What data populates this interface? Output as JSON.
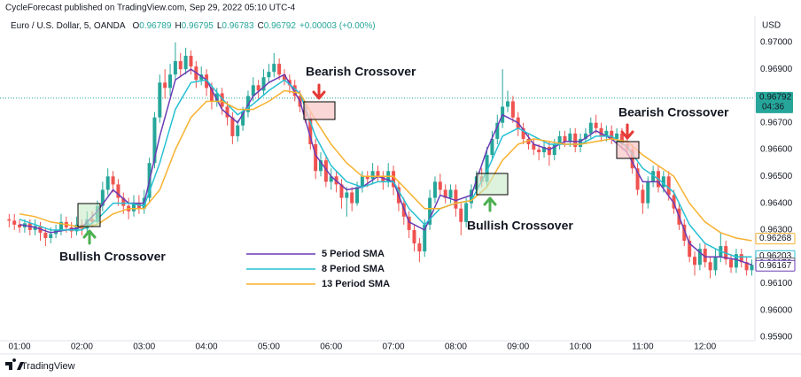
{
  "chart_data": {
    "type": "candlestick",
    "title": "CycleForecast published on TradingView.com, Sep 29, 2022 05:10 UTC-4",
    "symbol": "Euro / U.S. Dollar, 5, OANDA",
    "ohlc": [
      {
        "key": "O",
        "value": 0.96789
      },
      {
        "key": "H",
        "value": 0.96795
      },
      {
        "key": "L",
        "value": 0.96783
      },
      {
        "key": "C",
        "value": 0.96792
      }
    ],
    "change": "+0.00003 (+0.00%)",
    "currency": "USD",
    "brand": "TradingView",
    "up_color": "#26a69a",
    "down_color": "#ef5350",
    "x": [
      "00:50",
      "00:55",
      "01:00",
      "01:05",
      "01:10",
      "01:15",
      "01:20",
      "01:25",
      "01:30",
      "01:35",
      "01:40",
      "01:45",
      "01:50",
      "01:55",
      "02:00",
      "02:05",
      "02:10",
      "02:15",
      "02:20",
      "02:25",
      "02:30",
      "02:35",
      "02:40",
      "02:45",
      "02:50",
      "02:55",
      "03:00",
      "03:05",
      "03:10",
      "03:15",
      "03:20",
      "03:25",
      "03:30",
      "03:35",
      "03:40",
      "03:45",
      "03:50",
      "03:55",
      "04:00",
      "04:05",
      "04:10",
      "04:15",
      "04:20",
      "04:25",
      "04:30",
      "04:35",
      "04:40",
      "04:45",
      "04:50",
      "04:55",
      "05:00",
      "05:05",
      "05:10",
      "05:15",
      "05:20",
      "05:25",
      "05:30",
      "05:35",
      "05:40",
      "05:45",
      "05:50",
      "05:55",
      "06:00",
      "06:05",
      "06:10",
      "06:15",
      "06:20",
      "06:25",
      "06:30",
      "06:35",
      "06:40",
      "06:45",
      "06:50",
      "06:55",
      "07:00",
      "07:05",
      "07:10",
      "07:15",
      "07:20",
      "07:25",
      "07:30",
      "07:35",
      "07:40",
      "07:45",
      "07:50",
      "07:55",
      "08:00",
      "08:05",
      "08:10",
      "08:15",
      "08:20",
      "08:25",
      "08:30",
      "08:35",
      "08:40",
      "08:45",
      "08:50",
      "08:55",
      "09:00",
      "09:05",
      "09:10",
      "09:15",
      "09:20",
      "09:25",
      "09:30",
      "09:35",
      "09:40",
      "09:45",
      "09:50",
      "09:55",
      "10:00",
      "10:05",
      "10:10",
      "10:15",
      "10:20",
      "10:25",
      "10:30",
      "10:35",
      "10:40",
      "10:45",
      "10:50",
      "10:55",
      "11:00",
      "11:05",
      "11:10",
      "11:15",
      "11:20",
      "11:25",
      "11:30",
      "11:35",
      "11:40",
      "11:45",
      "11:50",
      "11:55",
      "12:00",
      "12:05",
      "12:10",
      "12:15",
      "12:20",
      "12:25",
      "12:30",
      "12:35",
      "12:40",
      "12:45"
    ],
    "open": [
      0.9634,
      0.96335,
      0.9632,
      0.9631,
      0.96325,
      0.963,
      0.96315,
      0.9629,
      0.9627,
      0.96285,
      0.963,
      0.9633,
      0.9631,
      0.96295,
      0.9632,
      0.96305,
      0.9634,
      0.9633,
      0.9639,
      0.9645,
      0.965,
      0.9647,
      0.9642,
      0.9639,
      0.9637,
      0.964,
      0.9638,
      0.9642,
      0.9655,
      0.9672,
      0.9685,
      0.9683,
      0.9688,
      0.9693,
      0.969,
      0.9695,
      0.9691,
      0.9686,
      0.9688,
      0.9683,
      0.9678,
      0.9681,
      0.9676,
      0.9672,
      0.9665,
      0.9669,
      0.9674,
      0.968,
      0.9684,
      0.9682,
      0.9687,
      0.9689,
      0.9692,
      0.9688,
      0.9686,
      0.9684,
      0.968,
      0.9676,
      0.9672,
      0.9662,
      0.9652,
      0.9656,
      0.9648,
      0.965,
      0.9647,
      0.9642,
      0.9644,
      0.964,
      0.9646,
      0.965,
      0.9649,
      0.9652,
      0.965,
      0.9648,
      0.9652,
      0.9646,
      0.964,
      0.9635,
      0.963,
      0.9625,
      0.9622,
      0.9632,
      0.9642,
      0.9648,
      0.9645,
      0.9642,
      0.9645,
      0.9638,
      0.9633,
      0.964,
      0.9645,
      0.965,
      0.9648,
      0.9658,
      0.9664,
      0.967,
      0.9676,
      0.9678,
      0.9672,
      0.9668,
      0.9664,
      0.9662,
      0.966,
      0.9659,
      0.9661,
      0.9658,
      0.9662,
      0.9665,
      0.9663,
      0.9666,
      0.9661,
      0.9664,
      0.9666,
      0.967,
      0.9668,
      0.9665,
      0.9667,
      0.9664,
      0.9666,
      0.9662,
      0.966,
      0.9653,
      0.9645,
      0.964,
      0.9648,
      0.9652,
      0.9646,
      0.965,
      0.9643,
      0.9638,
      0.9632,
      0.9626,
      0.962,
      0.9617,
      0.9623,
      0.9618,
      0.9615,
      0.962,
      0.9624,
      0.9619,
      0.9616,
      0.9621,
      0.9618,
      0.9615
    ],
    "high": [
      0.9636,
      0.9636,
      0.9634,
      0.9634,
      0.9634,
      0.9634,
      0.9633,
      0.9631,
      0.9631,
      0.9632,
      0.9636,
      0.9635,
      0.9633,
      0.9635,
      0.9634,
      0.9637,
      0.9637,
      0.9641,
      0.9648,
      0.9653,
      0.9652,
      0.9649,
      0.9644,
      0.9642,
      0.9643,
      0.9643,
      0.9645,
      0.9657,
      0.9674,
      0.9688,
      0.969,
      0.9692,
      0.97,
      0.9696,
      0.9698,
      0.9697,
      0.9693,
      0.9691,
      0.969,
      0.9685,
      0.9683,
      0.9683,
      0.9678,
      0.9674,
      0.9671,
      0.9676,
      0.9682,
      0.9687,
      0.9686,
      0.969,
      0.9692,
      0.9696,
      0.9694,
      0.969,
      0.9688,
      0.9686,
      0.9682,
      0.9678,
      0.9674,
      0.9664,
      0.9659,
      0.9658,
      0.9653,
      0.9652,
      0.9649,
      0.9646,
      0.9646,
      0.9648,
      0.9652,
      0.9652,
      0.9655,
      0.9654,
      0.9652,
      0.9655,
      0.9654,
      0.9648,
      0.9642,
      0.9637,
      0.9632,
      0.9627,
      0.9634,
      0.9645,
      0.965,
      0.9651,
      0.9647,
      0.9647,
      0.9647,
      0.964,
      0.9642,
      0.9647,
      0.9652,
      0.9653,
      0.9661,
      0.9667,
      0.9673,
      0.969,
      0.9682,
      0.968,
      0.9674,
      0.967,
      0.9666,
      0.9664,
      0.9662,
      0.9663,
      0.9663,
      0.9664,
      0.9667,
      0.9667,
      0.9668,
      0.9668,
      0.9666,
      0.9668,
      0.9672,
      0.9673,
      0.967,
      0.9669,
      0.9669,
      0.9668,
      0.9668,
      0.9664,
      0.9662,
      0.9655,
      0.9647,
      0.965,
      0.9654,
      0.9654,
      0.9652,
      0.9652,
      0.9645,
      0.964,
      0.9634,
      0.9628,
      0.9622,
      0.9625,
      0.9625,
      0.962,
      0.9623,
      0.9629,
      0.9626,
      0.9621,
      0.9623,
      0.9623,
      0.962,
      0.9619
    ],
    "low": [
      0.9631,
      0.963,
      0.9629,
      0.9629,
      0.9628,
      0.9628,
      0.9626,
      0.9624,
      0.9625,
      0.9627,
      0.9628,
      0.9629,
      0.9627,
      0.9628,
      0.9628,
      0.9629,
      0.9631,
      0.9632,
      0.9637,
      0.9643,
      0.9644,
      0.9639,
      0.9636,
      0.9634,
      0.9635,
      0.9636,
      0.9636,
      0.964,
      0.9653,
      0.967,
      0.9679,
      0.968,
      0.9686,
      0.9687,
      0.9688,
      0.9688,
      0.9683,
      0.9684,
      0.968,
      0.9675,
      0.9676,
      0.9673,
      0.9669,
      0.9662,
      0.9663,
      0.9667,
      0.9672,
      0.9678,
      0.9679,
      0.968,
      0.9685,
      0.9687,
      0.9686,
      0.9684,
      0.9681,
      0.9678,
      0.9674,
      0.967,
      0.966,
      0.9649,
      0.965,
      0.9646,
      0.9645,
      0.9644,
      0.9638,
      0.9635,
      0.9637,
      0.9639,
      0.9644,
      0.9646,
      0.9647,
      0.9648,
      0.9645,
      0.9646,
      0.9643,
      0.9637,
      0.9632,
      0.9627,
      0.9622,
      0.9618,
      0.962,
      0.963,
      0.964,
      0.9643,
      0.964,
      0.964,
      0.9635,
      0.9628,
      0.9631,
      0.9638,
      0.9643,
      0.9646,
      0.9646,
      0.9656,
      0.9662,
      0.9668,
      0.9674,
      0.967,
      0.9665,
      0.9662,
      0.966,
      0.9658,
      0.9656,
      0.9657,
      0.9654,
      0.9656,
      0.966,
      0.9661,
      0.9661,
      0.9659,
      0.9659,
      0.9662,
      0.9664,
      0.9666,
      0.9663,
      0.9663,
      0.9662,
      0.9662,
      0.966,
      0.9658,
      0.9651,
      0.9643,
      0.9636,
      0.9638,
      0.9646,
      0.9644,
      0.9644,
      0.9641,
      0.9636,
      0.963,
      0.9624,
      0.9618,
      0.9613,
      0.9615,
      0.9616,
      0.9612,
      0.9613,
      0.9618,
      0.9617,
      0.9614,
      0.9614,
      0.9616,
      0.9613,
      0.9613
    ],
    "close": [
      0.96335,
      0.9632,
      0.9631,
      0.96325,
      0.963,
      0.96315,
      0.9629,
      0.9627,
      0.96285,
      0.963,
      0.9633,
      0.9631,
      0.96295,
      0.9632,
      0.96305,
      0.9634,
      0.9633,
      0.9639,
      0.9645,
      0.965,
      0.9647,
      0.9642,
      0.9639,
      0.9637,
      0.964,
      0.9638,
      0.9642,
      0.9655,
      0.9672,
      0.9685,
      0.9683,
      0.9688,
      0.9693,
      0.969,
      0.9695,
      0.9691,
      0.9686,
      0.9688,
      0.9683,
      0.9678,
      0.9681,
      0.9676,
      0.9672,
      0.9665,
      0.9669,
      0.9674,
      0.968,
      0.9684,
      0.9682,
      0.9687,
      0.9689,
      0.9692,
      0.9688,
      0.9686,
      0.9684,
      0.968,
      0.9676,
      0.9672,
      0.9662,
      0.9652,
      0.9656,
      0.9648,
      0.965,
      0.9647,
      0.9642,
      0.9644,
      0.964,
      0.9646,
      0.965,
      0.9649,
      0.9652,
      0.965,
      0.9648,
      0.9652,
      0.9646,
      0.964,
      0.9635,
      0.963,
      0.9625,
      0.9622,
      0.9632,
      0.9642,
      0.9648,
      0.9645,
      0.9642,
      0.9645,
      0.9638,
      0.9633,
      0.964,
      0.9645,
      0.965,
      0.9648,
      0.9658,
      0.9664,
      0.967,
      0.9676,
      0.9678,
      0.9672,
      0.9668,
      0.9664,
      0.9662,
      0.966,
      0.9659,
      0.9661,
      0.9658,
      0.9662,
      0.9665,
      0.9663,
      0.9666,
      0.9661,
      0.9664,
      0.9666,
      0.967,
      0.9668,
      0.9665,
      0.9667,
      0.9664,
      0.9666,
      0.9662,
      0.966,
      0.9653,
      0.9645,
      0.964,
      0.9648,
      0.9652,
      0.9646,
      0.965,
      0.9643,
      0.9638,
      0.9632,
      0.9626,
      0.962,
      0.9617,
      0.9623,
      0.9618,
      0.9615,
      0.962,
      0.9624,
      0.9619,
      0.9616,
      0.9621,
      0.9618,
      0.9615,
      0.9617
    ],
    "series": [
      {
        "name": "5 Period SMA",
        "color": "#6a3cb5",
        "x": [
          "01:00",
          "01:15",
          "01:30",
          "01:45",
          "02:00",
          "02:15",
          "02:30",
          "02:45",
          "03:00",
          "03:15",
          "03:30",
          "03:45",
          "04:00",
          "04:15",
          "04:30",
          "04:45",
          "05:00",
          "05:15",
          "05:30",
          "05:45",
          "06:00",
          "06:15",
          "06:30",
          "06:45",
          "07:00",
          "07:15",
          "07:30",
          "07:45",
          "08:00",
          "08:15",
          "08:30",
          "08:45",
          "09:00",
          "09:15",
          "09:30",
          "09:45",
          "10:00",
          "10:15",
          "10:30",
          "10:45",
          "11:00",
          "11:15",
          "11:30",
          "11:45",
          "12:00",
          "12:15",
          "12:30",
          "12:45"
        ],
        "values": [
          0.9632,
          0.9631,
          0.9629,
          0.963,
          0.9631,
          0.9637,
          0.9645,
          0.964,
          0.964,
          0.9665,
          0.9686,
          0.969,
          0.9686,
          0.9675,
          0.967,
          0.968,
          0.9685,
          0.9688,
          0.9678,
          0.9658,
          0.965,
          0.9645,
          0.9646,
          0.965,
          0.9648,
          0.9633,
          0.963,
          0.9643,
          0.9641,
          0.9643,
          0.966,
          0.9673,
          0.967,
          0.9662,
          0.966,
          0.9663,
          0.9663,
          0.9667,
          0.9664,
          0.9659,
          0.9648,
          0.9648,
          0.964,
          0.9625,
          0.962,
          0.962,
          0.9619,
          0.9617
        ]
      },
      {
        "name": "8 Period SMA",
        "color": "#26c0d3",
        "x": [
          "01:00",
          "01:15",
          "01:30",
          "01:45",
          "02:00",
          "02:15",
          "02:30",
          "02:45",
          "03:00",
          "03:15",
          "03:30",
          "03:45",
          "04:00",
          "04:15",
          "04:30",
          "04:45",
          "05:00",
          "05:15",
          "05:30",
          "05:45",
          "06:00",
          "06:15",
          "06:30",
          "06:45",
          "07:00",
          "07:15",
          "07:30",
          "07:45",
          "08:00",
          "08:15",
          "08:30",
          "08:45",
          "09:00",
          "09:15",
          "09:30",
          "09:45",
          "10:00",
          "10:15",
          "10:30",
          "10:45",
          "11:00",
          "11:15",
          "11:30",
          "11:45",
          "12:00",
          "12:15",
          "12:30",
          "12:45"
        ],
        "values": [
          0.9634,
          0.9632,
          0.963,
          0.963,
          0.963,
          0.9634,
          0.964,
          0.964,
          0.9639,
          0.9655,
          0.9675,
          0.9685,
          0.9686,
          0.9679,
          0.9673,
          0.9677,
          0.9682,
          0.9686,
          0.9681,
          0.9665,
          0.9654,
          0.9648,
          0.9646,
          0.9648,
          0.9648,
          0.9638,
          0.9632,
          0.9638,
          0.964,
          0.9641,
          0.9652,
          0.9665,
          0.9668,
          0.9665,
          0.9662,
          0.9662,
          0.9662,
          0.9665,
          0.9665,
          0.9661,
          0.9653,
          0.9649,
          0.9644,
          0.9632,
          0.9625,
          0.9622,
          0.962,
          0.962
        ]
      },
      {
        "name": "13 Period SMA",
        "color": "#f7b12f",
        "x": [
          "01:00",
          "01:15",
          "01:30",
          "01:45",
          "02:00",
          "02:15",
          "02:30",
          "02:45",
          "03:00",
          "03:15",
          "03:30",
          "03:45",
          "04:00",
          "04:15",
          "04:30",
          "04:45",
          "05:00",
          "05:15",
          "05:30",
          "05:45",
          "06:00",
          "06:15",
          "06:30",
          "06:45",
          "07:00",
          "07:15",
          "07:30",
          "07:45",
          "08:00",
          "08:15",
          "08:30",
          "08:45",
          "09:00",
          "09:15",
          "09:30",
          "09:45",
          "10:00",
          "10:15",
          "10:30",
          "10:45",
          "11:00",
          "11:15",
          "11:30",
          "11:45",
          "12:00",
          "12:15",
          "12:30",
          "12:45"
        ],
        "values": [
          0.9636,
          0.9635,
          0.9633,
          0.9632,
          0.9631,
          0.9632,
          0.9636,
          0.9638,
          0.9638,
          0.9645,
          0.966,
          0.9672,
          0.9678,
          0.9678,
          0.9675,
          0.9675,
          0.9678,
          0.9682,
          0.9681,
          0.9671,
          0.9662,
          0.9655,
          0.965,
          0.965,
          0.965,
          0.9644,
          0.9638,
          0.9638,
          0.964,
          0.9641,
          0.9646,
          0.9656,
          0.9662,
          0.9664,
          0.9663,
          0.9662,
          0.9662,
          0.9663,
          0.9664,
          0.9663,
          0.9658,
          0.9654,
          0.965,
          0.964,
          0.9633,
          0.9629,
          0.9627,
          0.9626
        ]
      }
    ],
    "current_price": 0.96792,
    "countdown": "04:36",
    "current_color": "#26a69a",
    "price_labels": [
      {
        "value": 0.96268,
        "color": "#f7b12f"
      },
      {
        "value": 0.96203,
        "color": "#26c0d3"
      },
      {
        "value": 0.96176,
        "color": "#5d606b"
      },
      {
        "value": 0.96167,
        "color": "#6a3cb5"
      }
    ],
    "annotations": [
      "Bullish Crossover",
      "Bearish Crossover",
      "Bullish Crossover",
      "Bearish Crossover"
    ],
    "xlim": [
      "00:48",
      "12:48"
    ],
    "xticks": [
      "01:00",
      "02:00",
      "03:00",
      "04:00",
      "05:00",
      "06:00",
      "07:00",
      "08:00",
      "09:00",
      "10:00",
      "11:00",
      "12:00"
    ],
    "ylim": [
      0.95887,
      0.97059
    ],
    "yticks": [
      {
        "value": 0.97,
        "label": "0.97000"
      },
      {
        "value": 0.969,
        "label": "0.96900"
      },
      {
        "value": 0.967,
        "label": "0.96700"
      },
      {
        "value": 0.966,
        "label": "0.96600"
      },
      {
        "value": 0.965,
        "label": "0.96500"
      },
      {
        "value": 0.964,
        "label": "0.96400"
      },
      {
        "value": 0.963,
        "label": "0.96300"
      },
      {
        "value": 0.961,
        "label": "0.96100"
      },
      {
        "value": 0.96,
        "label": "0.96000"
      },
      {
        "value": 0.959,
        "label": "0.95900"
      }
    ],
    "grid": false
  }
}
